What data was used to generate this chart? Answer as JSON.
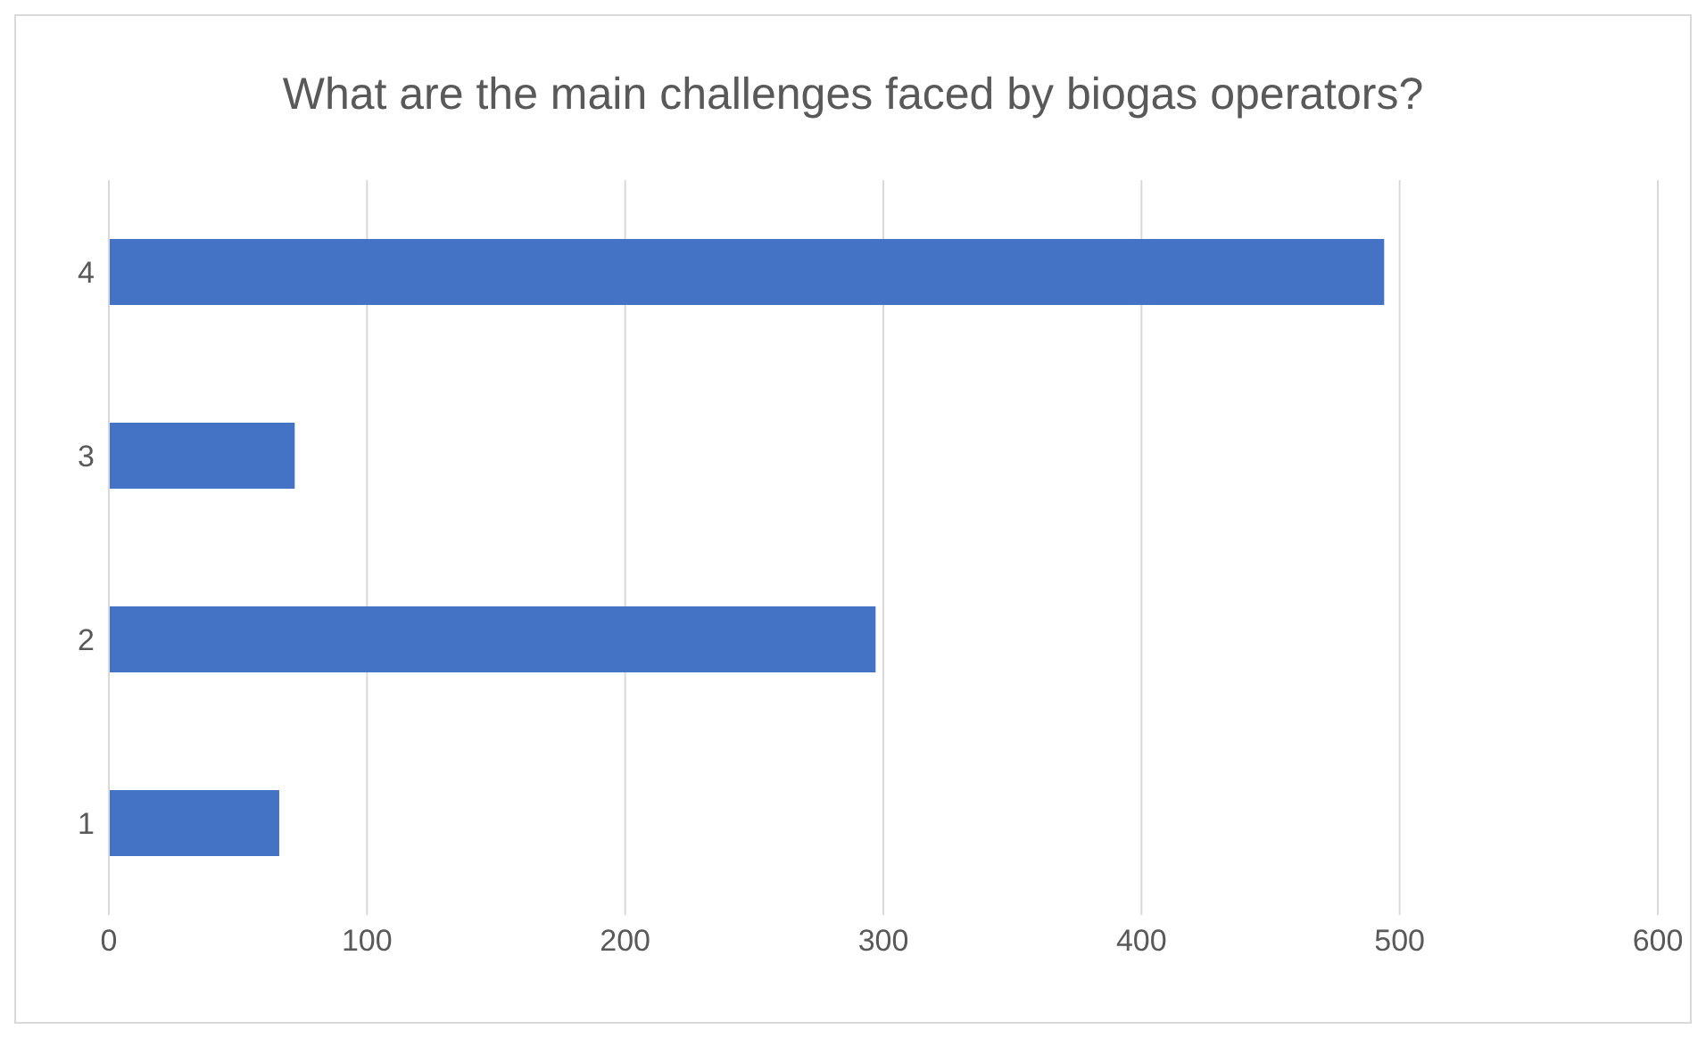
{
  "chart_data": {
    "type": "bar",
    "orientation": "horizontal",
    "title": "What are the main challenges faced by biogas operators?",
    "categories": [
      "4",
      "3",
      "2",
      "1"
    ],
    "values": [
      494,
      72,
      297,
      66
    ],
    "color": "#4472c4",
    "xlim": [
      0,
      600
    ],
    "xticks": [
      0,
      100,
      200,
      300,
      400,
      500,
      600
    ],
    "grid": "x"
  }
}
